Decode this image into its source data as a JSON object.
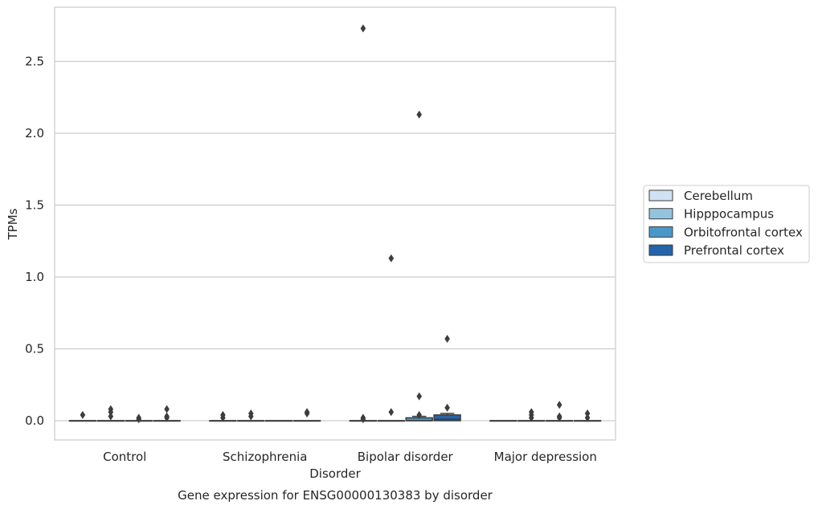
{
  "chart_data": {
    "type": "box",
    "caption": "Gene expression for ENSG00000130383 by disorder",
    "xlabel": "Disorder",
    "ylabel": "TPMs",
    "ylim": [
      -0.13,
      2.87
    ],
    "yticks": [
      0.0,
      0.5,
      1.0,
      1.5,
      2.0,
      2.5
    ],
    "ytick_labels": [
      "0.0",
      "0.5",
      "1.0",
      "1.5",
      "2.0",
      "2.5"
    ],
    "grid": "horizontal",
    "legend_position": "right",
    "categories": [
      "Control",
      "Schizophrenia",
      "Bipolar disorder",
      "Major depression"
    ],
    "series": [
      {
        "name": "Cerebellum",
        "color": "#cfe1f2",
        "boxes": [
          {
            "q1": 0,
            "median": 0,
            "q3": 0,
            "whisker_low": 0,
            "whisker_high": 0,
            "outliers": [
              0.04
            ]
          },
          {
            "q1": 0,
            "median": 0,
            "q3": 0,
            "whisker_low": 0,
            "whisker_high": 0,
            "outliers": [
              0.02,
              0.04
            ]
          },
          {
            "q1": 0,
            "median": 0,
            "q3": 0,
            "whisker_low": 0,
            "whisker_high": 0,
            "outliers": [
              0.01,
              0.02,
              2.73
            ]
          },
          {
            "q1": 0,
            "median": 0,
            "q3": 0,
            "whisker_low": 0,
            "whisker_high": 0,
            "outliers": []
          }
        ]
      },
      {
        "name": "Hipppocampus",
        "color": "#93c4de",
        "boxes": [
          {
            "q1": 0,
            "median": 0,
            "q3": 0,
            "whisker_low": 0,
            "whisker_high": 0,
            "outliers": [
              0.03,
              0.06,
              0.08
            ]
          },
          {
            "q1": 0,
            "median": 0,
            "q3": 0,
            "whisker_low": 0,
            "whisker_high": 0,
            "outliers": [
              0.03,
              0.05
            ]
          },
          {
            "q1": 0,
            "median": 0,
            "q3": 0,
            "whisker_low": 0,
            "whisker_high": 0,
            "outliers": [
              0.06,
              1.13
            ]
          },
          {
            "q1": 0,
            "median": 0,
            "q3": 0,
            "whisker_low": 0,
            "whisker_high": 0,
            "outliers": [
              0.02,
              0.04,
              0.06
            ]
          }
        ]
      },
      {
        "name": "Orbitofrontal cortex",
        "color": "#4a98c9",
        "boxes": [
          {
            "q1": 0,
            "median": 0,
            "q3": 0,
            "whisker_low": 0,
            "whisker_high": 0,
            "outliers": [
              0.01,
              0.02
            ]
          },
          {
            "q1": 0,
            "median": 0,
            "q3": 0,
            "whisker_low": 0,
            "whisker_high": 0,
            "outliers": []
          },
          {
            "q1": 0,
            "median": 0,
            "q3": 0.02,
            "whisker_low": 0,
            "whisker_high": 0.03,
            "outliers": [
              0.04,
              0.17,
              2.13
            ]
          },
          {
            "q1": 0,
            "median": 0,
            "q3": 0,
            "whisker_low": 0,
            "whisker_high": 0,
            "outliers": [
              0.02,
              0.03,
              0.11
            ]
          }
        ]
      },
      {
        "name": "Prefrontal cortex",
        "color": "#2464a8",
        "boxes": [
          {
            "q1": 0,
            "median": 0,
            "q3": 0,
            "whisker_low": 0,
            "whisker_high": 0,
            "outliers": [
              0.02,
              0.03,
              0.08
            ]
          },
          {
            "q1": 0,
            "median": 0,
            "q3": 0,
            "whisker_low": 0,
            "whisker_high": 0,
            "outliers": [
              0.05,
              0.06
            ]
          },
          {
            "q1": 0,
            "median": 0.01,
            "q3": 0.04,
            "whisker_low": 0,
            "whisker_high": 0.05,
            "outliers": [
              0.09,
              0.57
            ]
          },
          {
            "q1": 0,
            "median": 0,
            "q3": 0,
            "whisker_low": 0,
            "whisker_high": 0,
            "outliers": [
              0.02,
              0.05
            ]
          }
        ]
      }
    ]
  }
}
